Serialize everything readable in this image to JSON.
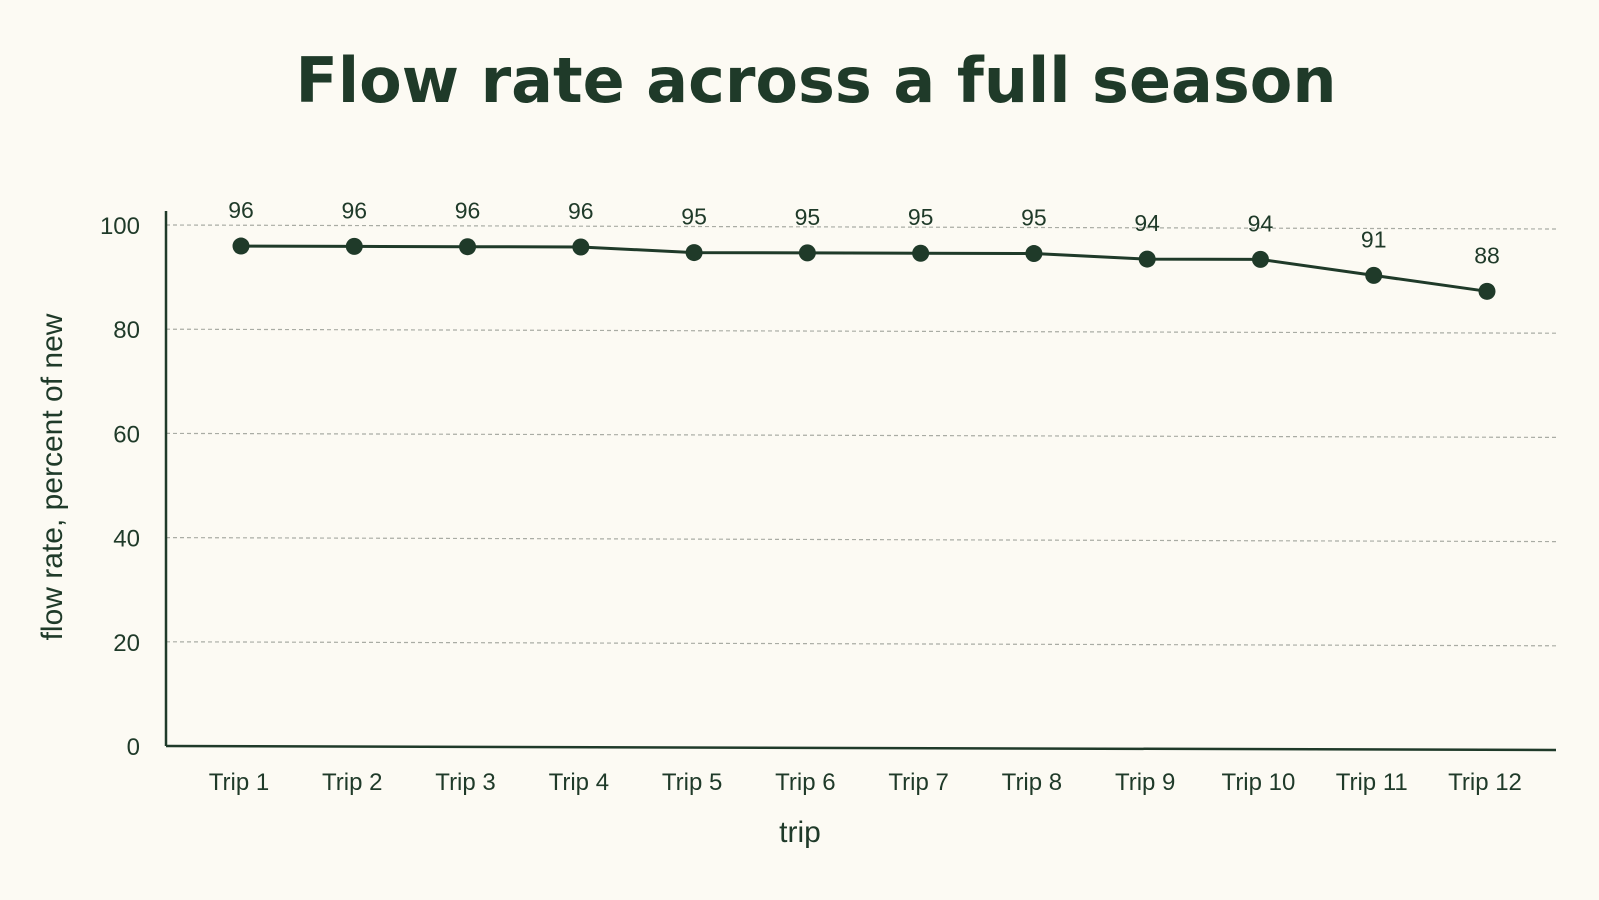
{
  "colors": {
    "background": "#fcfaf3",
    "ink": "#1f3a29",
    "grid": "#a9aca4"
  },
  "chart_data": {
    "type": "line",
    "title": "Flow rate across a full season",
    "xlabel": "trip",
    "ylabel": "flow rate, percent of new",
    "categories": [
      "Trip 1",
      "Trip 2",
      "Trip 3",
      "Trip 4",
      "Trip 5",
      "Trip 6",
      "Trip 7",
      "Trip 8",
      "Trip 9",
      "Trip 10",
      "Trip 11",
      "Trip 12"
    ],
    "series": [
      {
        "values": [
          96,
          96,
          96,
          96,
          95,
          95,
          95,
          95,
          94,
          94,
          91,
          88
        ],
        "data_labels": [
          "96",
          "96",
          "96",
          "96",
          "95",
          "95",
          "95",
          "95",
          "94",
          "94",
          "91",
          "88"
        ]
      }
    ],
    "ylim": [
      0,
      100
    ],
    "yticks": [
      "0",
      "20",
      "40",
      "60",
      "80",
      "100"
    ],
    "grid": "horizontal dashed",
    "legend": "none",
    "markers": "filled circles"
  }
}
